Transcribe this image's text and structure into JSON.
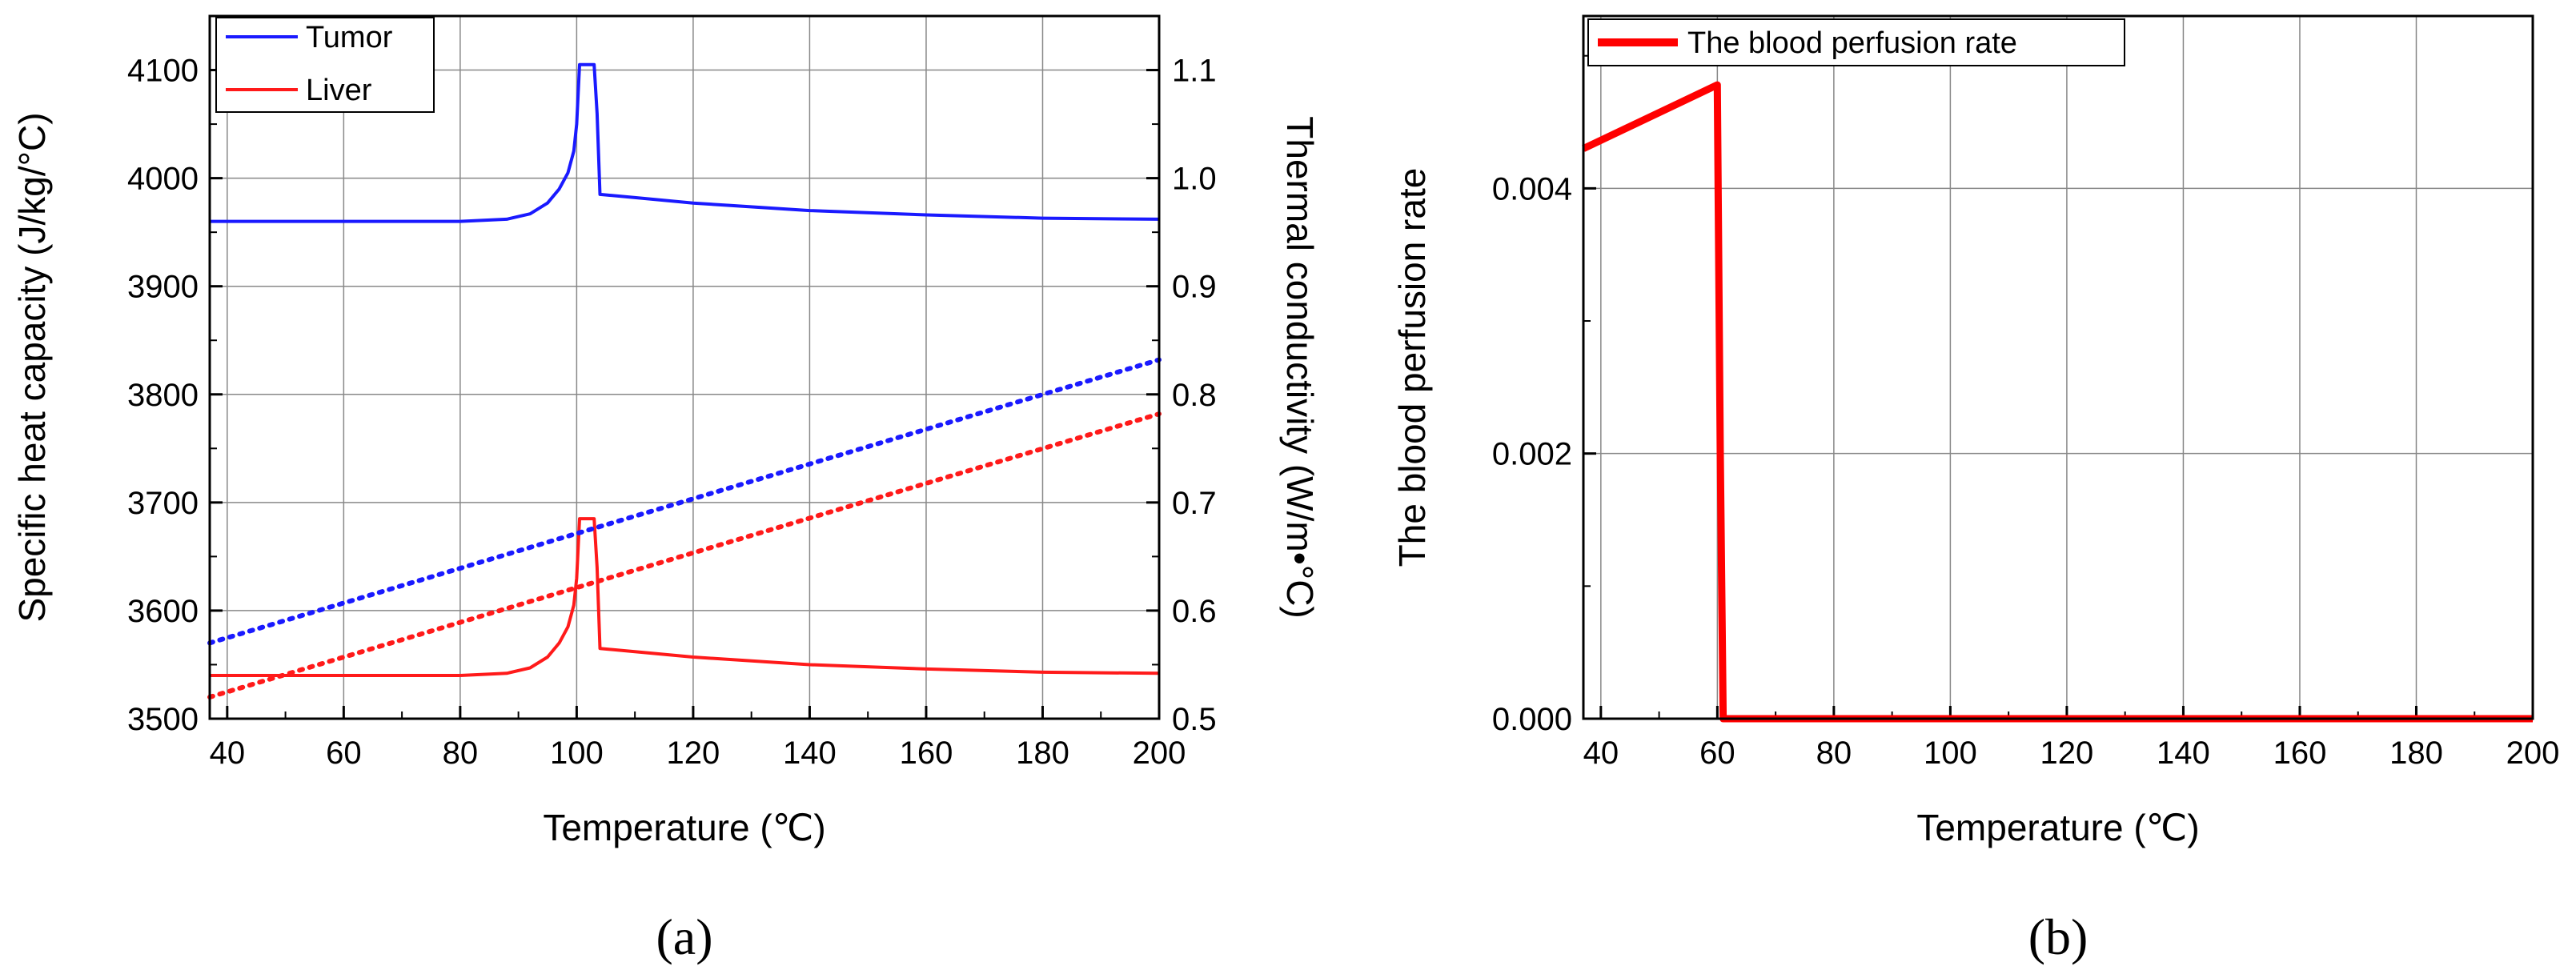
{
  "chart_data": [
    {
      "panel": "a",
      "caption": "(a)",
      "type": "line",
      "xlabel": "Temperature (℃)",
      "ylabel": "Specific heat capacity (J/kg/°C)",
      "ylabel_right": "Thermal conductivity (W/m•°C)",
      "xlim": [
        37,
        200
      ],
      "ylim": [
        3500,
        4150
      ],
      "ylim_right": [
        0.5,
        1.15
      ],
      "x_ticks": [
        "40",
        "60",
        "80",
        "100",
        "120",
        "140",
        "160",
        "180",
        "200"
      ],
      "y_ticks": [
        "3500",
        "3600",
        "3700",
        "3800",
        "3900",
        "4000",
        "4100"
      ],
      "y_ticks_right": [
        "0.5",
        "0.6",
        "0.7",
        "0.8",
        "0.9",
        "1.0",
        "1.1"
      ],
      "grid": true,
      "legend_position": "top-left",
      "series": [
        {
          "name": "Tumor",
          "axis": "left",
          "style": "solid",
          "color": "#1a1aff",
          "x": [
            37,
            80,
            88,
            92,
            95,
            97,
            98.5,
            99.5,
            100,
            100.5,
            101,
            103,
            103.5,
            104,
            110,
            120,
            140,
            160,
            180,
            200
          ],
          "y": [
            3960,
            3960,
            3962,
            3967,
            3977,
            3990,
            4005,
            4025,
            4050,
            4105,
            4105,
            4105,
            4060,
            3985,
            3982,
            3977,
            3970,
            3966,
            3963,
            3962
          ]
        },
        {
          "name": "Liver",
          "axis": "left",
          "style": "solid",
          "color": "#ff1a1a",
          "x": [
            37,
            80,
            88,
            92,
            95,
            97,
            98.5,
            99.5,
            100,
            100.5,
            101,
            103,
            103.5,
            104,
            110,
            120,
            140,
            160,
            180,
            200
          ],
          "y": [
            3540,
            3540,
            3542,
            3547,
            3557,
            3570,
            3585,
            3605,
            3630,
            3685,
            3685,
            3685,
            3640,
            3565,
            3562,
            3557,
            3550,
            3546,
            3543,
            3542
          ]
        },
        {
          "name": "",
          "axis": "right",
          "style": "dotted",
          "color": "#1a1aff",
          "x": [
            37,
            200
          ],
          "y": [
            0.57,
            0.832
          ]
        },
        {
          "name": "",
          "axis": "right",
          "style": "dotted",
          "color": "#ff1a1a",
          "x": [
            37,
            200
          ],
          "y": [
            0.52,
            0.782
          ]
        }
      ]
    },
    {
      "panel": "b",
      "caption": "(b)",
      "type": "line",
      "xlabel": "Temperature (℃)",
      "ylabel": "The blood perfusion rate",
      "xlim": [
        37,
        200
      ],
      "ylim": [
        0,
        0.0053
      ],
      "x_ticks": [
        "40",
        "60",
        "80",
        "100",
        "120",
        "140",
        "160",
        "180",
        "200"
      ],
      "y_ticks": [
        "0.000",
        "0.002",
        "0.004"
      ],
      "grid": true,
      "legend_position": "top-left",
      "series": [
        {
          "name": "The blood perfusion rate",
          "style": "solid",
          "color": "#ff0000",
          "x": [
            37,
            60,
            60.5,
            61,
            200
          ],
          "y": [
            0.0043,
            0.00478,
            0.002,
            0,
            0
          ]
        }
      ]
    }
  ]
}
